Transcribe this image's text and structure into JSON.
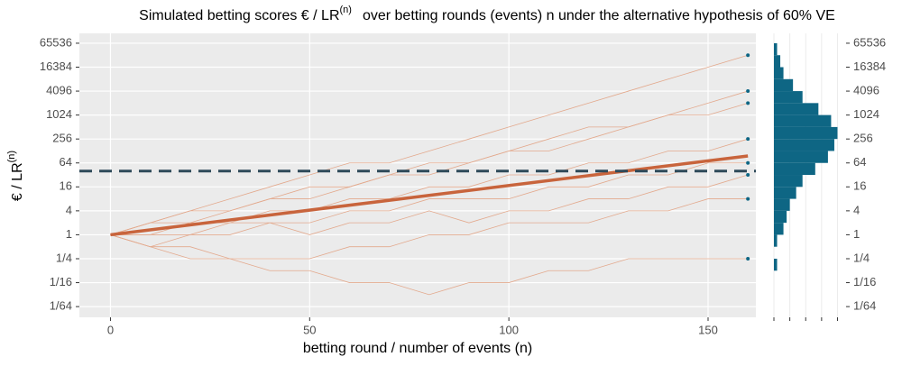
{
  "chart_data": {
    "type": "line",
    "title": "Simulated betting scores € / LR",
    "title_superscript": "(n)",
    "title_rest": "over betting rounds (events) n under the alternative hypothesis of 60% VE",
    "x_label": "betting round / number of events (n)",
    "y_label": "€ / LR",
    "y_label_superscript": "(n)",
    "x": [
      0,
      10,
      20,
      30,
      40,
      50,
      60,
      70,
      80,
      90,
      100,
      110,
      120,
      130,
      140,
      150,
      160
    ],
    "xlim": [
      -7.8,
      162
    ],
    "xticks": [
      0,
      50,
      100,
      150
    ],
    "log_y": true,
    "ylim": [
      0.0084,
      116000
    ],
    "yticks": [
      {
        "value": 0.015625,
        "label": "1/64"
      },
      {
        "value": 0.0625,
        "label": "1/16"
      },
      {
        "value": 0.25,
        "label": "1/4"
      },
      1,
      4,
      16,
      64,
      256,
      1024,
      4096,
      16384,
      65536
    ],
    "grid": true,
    "series": [
      {
        "color": "#e3a98d",
        "values": [
          1,
          2,
          4,
          8,
          16,
          32,
          64,
          64,
          128,
          256,
          512,
          1024,
          2048,
          4096,
          8192,
          16384,
          32768
        ]
      },
      {
        "color": "#e3a98d",
        "values": [
          1,
          2,
          4,
          4,
          8,
          16,
          16,
          32,
          64,
          64,
          128,
          256,
          512,
          512,
          1024,
          2048,
          4096
        ]
      },
      {
        "color": "#e3a98d",
        "values": [
          1,
          2,
          2,
          4,
          8,
          8,
          16,
          32,
          32,
          64,
          128,
          128,
          256,
          512,
          1024,
          1024,
          2048
        ]
      },
      {
        "color": "#e3a98d",
        "values": [
          1,
          1,
          2,
          2,
          4,
          4,
          8,
          8,
          16,
          16,
          32,
          32,
          64,
          64,
          128,
          128,
          256
        ]
      },
      {
        "color": "#e3a98d",
        "values": [
          1,
          1,
          1,
          2,
          2,
          2,
          4,
          4,
          8,
          8,
          8,
          16,
          16,
          32,
          32,
          64,
          64
        ]
      },
      {
        "color": "#e3a98d",
        "values": [
          1,
          0.5,
          1,
          1,
          2,
          1,
          2,
          2,
          4,
          2,
          4,
          4,
          8,
          8,
          16,
          16,
          32
        ]
      },
      {
        "color": "#e3a98d",
        "values": [
          1,
          0.5,
          0.5,
          0.25,
          0.25,
          0.25,
          0.5,
          0.5,
          1,
          1,
          2,
          2,
          2,
          4,
          4,
          8,
          8
        ]
      },
      {
        "color": "#e3a98d",
        "values": [
          1,
          0.5,
          0.25,
          0.25,
          0.125,
          0.125,
          0.0625,
          0.0625,
          0.03125,
          0.0625,
          0.0625,
          0.125,
          0.125,
          0.25,
          0.25,
          0.25,
          0.25
        ]
      }
    ],
    "mean_line": {
      "color": "#c8643c",
      "x": [
        0,
        160
      ],
      "values": [
        1,
        96
      ]
    },
    "threshold": {
      "value": 40,
      "color": "#2e4a5a"
    },
    "final_color": "#0e6684",
    "histogram": {
      "color": "#0e6684",
      "bins": [
        0.125,
        0.25,
        0.5,
        1,
        2,
        4,
        8,
        16,
        32,
        64,
        128,
        256,
        512,
        1024,
        2048,
        4096,
        8192,
        16384,
        32768,
        65536
      ],
      "counts": [
        1,
        0,
        1,
        3,
        4,
        5,
        7,
        9,
        13,
        17,
        19,
        20,
        18,
        14,
        9,
        6,
        3,
        2,
        1
      ],
      "xlim": [
        0,
        21
      ],
      "xticks": [
        0,
        5,
        10,
        15,
        20
      ]
    }
  }
}
